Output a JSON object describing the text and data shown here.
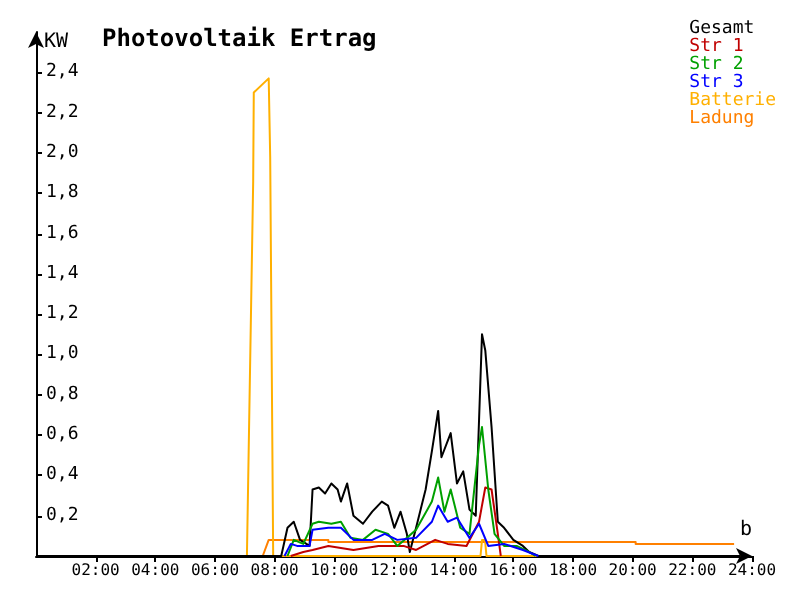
{
  "chart_data": {
    "type": "line",
    "title": "Photovoltaik Ertrag",
    "ylabel": "KW",
    "xlim": [
      0,
      24
    ],
    "xticks": [
      {
        "value": 2,
        "label": "02:00"
      },
      {
        "value": 4,
        "label": "04:00"
      },
      {
        "value": 6,
        "label": "06:00"
      },
      {
        "value": 8,
        "label": "08:00"
      },
      {
        "value": 10,
        "label": "10:00"
      },
      {
        "value": 12,
        "label": "12:00"
      },
      {
        "value": 14,
        "label": "14:00"
      },
      {
        "value": 16,
        "label": "16:00"
      },
      {
        "value": 18,
        "label": "18:00"
      },
      {
        "value": 20,
        "label": "20:00"
      },
      {
        "value": 22,
        "label": "22:00"
      },
      {
        "value": 24,
        "label": "24:00"
      }
    ],
    "ylim": [
      0,
      2.6
    ],
    "yticks": [
      {
        "value": 0.2,
        "label": "0,2"
      },
      {
        "value": 0.4,
        "label": "0,4"
      },
      {
        "value": 0.6,
        "label": "0,6"
      },
      {
        "value": 0.8,
        "label": "0,8"
      },
      {
        "value": 1.0,
        "label": "1,0"
      },
      {
        "value": 1.2,
        "label": "1,2"
      },
      {
        "value": 1.4,
        "label": "1,4"
      },
      {
        "value": 1.6,
        "label": "1,6"
      },
      {
        "value": 1.8,
        "label": "1,8"
      },
      {
        "value": 2.0,
        "label": "2,0"
      },
      {
        "value": 2.2,
        "label": "2,2"
      },
      {
        "value": 2.4,
        "label": "2,4"
      }
    ],
    "grid": false,
    "legend": "top right",
    "marker": "none",
    "line_style": "solid",
    "annotations": [
      {
        "text": "b",
        "x": 23.6,
        "y": 0.06
      }
    ],
    "series": [
      {
        "name": "Ladung",
        "color": "#ff8000",
        "x": [
          0,
          7.6,
          7.8,
          9.8,
          9.8,
          20.1,
          20.1,
          23.4
        ],
        "values": [
          0,
          0,
          0.08,
          0.08,
          0.07,
          0.07,
          0.06,
          0.06
        ]
      },
      {
        "name": "Batterie",
        "color": "#ffb000",
        "x": [
          0,
          7.07,
          7.28,
          7.3,
          7.8,
          7.85,
          7.95,
          14.9,
          14.95,
          15.05,
          15.1,
          23.6
        ],
        "values": [
          0,
          0,
          1.86,
          2.3,
          2.37,
          1.98,
          0,
          0,
          0.08,
          0.08,
          0,
          0
        ]
      },
      {
        "name": "Gesamt",
        "color": "#000000",
        "x": [
          0,
          8.22,
          8.43,
          8.64,
          8.85,
          9.17,
          9.27,
          9.48,
          9.69,
          9.9,
          10.11,
          10.22,
          10.43,
          10.64,
          10.96,
          11.27,
          11.59,
          11.8,
          12.01,
          12.22,
          12.43,
          12.53,
          12.74,
          13.06,
          13.27,
          13.48,
          13.59,
          13.9,
          14.11,
          14.32,
          14.53,
          14.74,
          14.95,
          15.06,
          15.27,
          15.48,
          15.69,
          16.0,
          16.32,
          16.53,
          16.84,
          23.6
        ],
        "values": [
          0,
          0,
          0.14,
          0.17,
          0.08,
          0.05,
          0.33,
          0.34,
          0.31,
          0.36,
          0.33,
          0.27,
          0.36,
          0.2,
          0.16,
          0.22,
          0.27,
          0.25,
          0.14,
          0.22,
          0.11,
          0.02,
          0.14,
          0.33,
          0.52,
          0.72,
          0.49,
          0.61,
          0.36,
          0.42,
          0.23,
          0.2,
          1.1,
          1.02,
          0.64,
          0.17,
          0.14,
          0.08,
          0.05,
          0.02,
          0,
          0
        ]
      },
      {
        "name": "Str 1",
        "color": "#c00000",
        "x": [
          8.54,
          8.96,
          9.27,
          9.8,
          10.64,
          11.48,
          12.32,
          12.74,
          13.38,
          13.8,
          14.43,
          14.85,
          15.06,
          15.27,
          15.48,
          15.58
        ],
        "values": [
          0,
          0.02,
          0.03,
          0.05,
          0.03,
          0.05,
          0.05,
          0.03,
          0.08,
          0.06,
          0.05,
          0.17,
          0.34,
          0.33,
          0.11,
          0
        ]
      },
      {
        "name": "Str 2",
        "color": "#00a000",
        "x": [
          8.43,
          8.64,
          8.96,
          9.27,
          9.48,
          9.9,
          10.22,
          10.54,
          10.96,
          11.38,
          11.8,
          12.11,
          12.43,
          12.74,
          13.27,
          13.48,
          13.69,
          13.9,
          14.22,
          14.53,
          14.85,
          14.95,
          15.16,
          15.37,
          15.69,
          16.11,
          16.53,
          16.74
        ],
        "values": [
          0,
          0.08,
          0.06,
          0.16,
          0.17,
          0.16,
          0.17,
          0.09,
          0.08,
          0.13,
          0.11,
          0.05,
          0.09,
          0.13,
          0.27,
          0.39,
          0.22,
          0.33,
          0.14,
          0.11,
          0.55,
          0.64,
          0.33,
          0.11,
          0.05,
          0.05,
          0.02,
          0
        ]
      },
      {
        "name": "Str 3",
        "color": "#0000ff",
        "x": [
          8.33,
          8.54,
          8.75,
          9.17,
          9.27,
          9.8,
          10.22,
          10.64,
          11.27,
          11.69,
          12.11,
          12.74,
          13.27,
          13.48,
          13.8,
          14.11,
          14.53,
          14.85,
          15.16,
          15.69,
          16.32,
          16.84
        ],
        "values": [
          0,
          0.06,
          0.05,
          0.05,
          0.13,
          0.14,
          0.14,
          0.08,
          0.08,
          0.11,
          0.08,
          0.09,
          0.17,
          0.25,
          0.17,
          0.19,
          0.09,
          0.16,
          0.05,
          0.06,
          0.03,
          0
        ]
      }
    ]
  }
}
